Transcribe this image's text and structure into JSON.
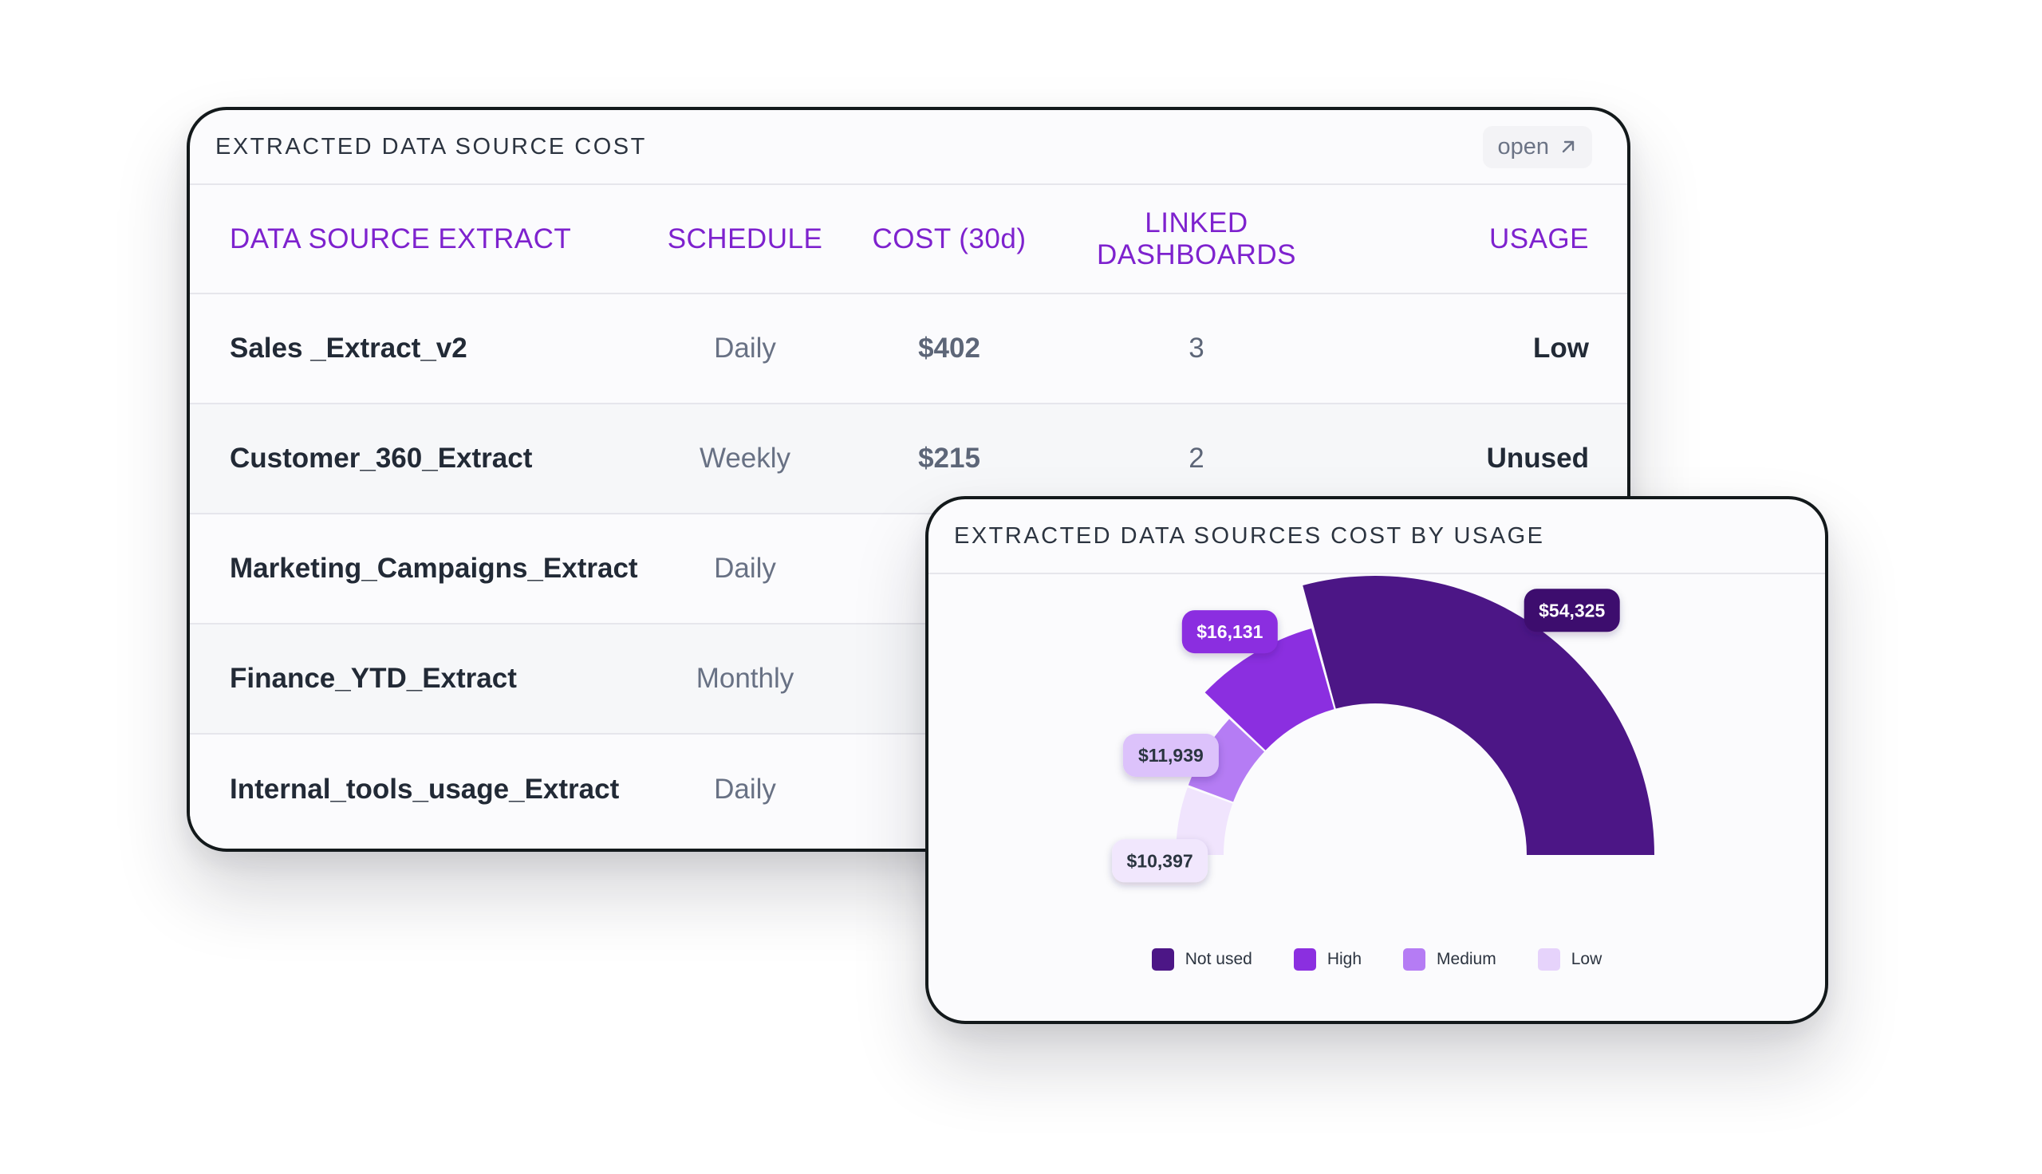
{
  "table_card": {
    "title": "EXTRACTED DATA SOURCE COST",
    "open_label": "open",
    "columns": [
      "DATA SOURCE EXTRACT",
      "SCHEDULE",
      "COST (30d)",
      "LINKED DASHBOARDS",
      "USAGE"
    ],
    "rows": [
      {
        "name": "Sales _Extract_v2",
        "schedule": "Daily",
        "cost": "$402",
        "linked": "3",
        "usage": "Low"
      },
      {
        "name": "Customer_360_Extract",
        "schedule": "Weekly",
        "cost": "$215",
        "linked": "2",
        "usage": "Unused"
      },
      {
        "name": "Marketing_Campaigns_Extract",
        "schedule": "Daily",
        "cost": "",
        "linked": "",
        "usage": ""
      },
      {
        "name": "Finance_YTD_Extract",
        "schedule": "Monthly",
        "cost": "",
        "linked": "",
        "usage": ""
      },
      {
        "name": "Internal_tools_usage_Extract",
        "schedule": "Daily",
        "cost": "",
        "linked": "",
        "usage": ""
      }
    ]
  },
  "chart_card": {
    "title": "EXTRACTED DATA SOURCES COST BY USAGE"
  },
  "chart_data": {
    "type": "pie",
    "variant": "half-donut",
    "legend_position": "bottom",
    "series": [
      {
        "name": "Not used",
        "value": 54325,
        "label": "$54,325",
        "color": "#4c1686"
      },
      {
        "name": "High",
        "value": 16131,
        "label": "$16,131",
        "color": "#8b2fe0"
      },
      {
        "name": "Medium",
        "value": 11939,
        "label": "$11,939",
        "color": "#b57cf4"
      },
      {
        "name": "Low",
        "value": 10397,
        "label": "$10,397",
        "color": "#f0e4fd"
      }
    ]
  },
  "colors": {
    "accent": "#7e22ce",
    "border": "#13191b"
  },
  "icons": {
    "open": "arrow-up-right-icon"
  }
}
